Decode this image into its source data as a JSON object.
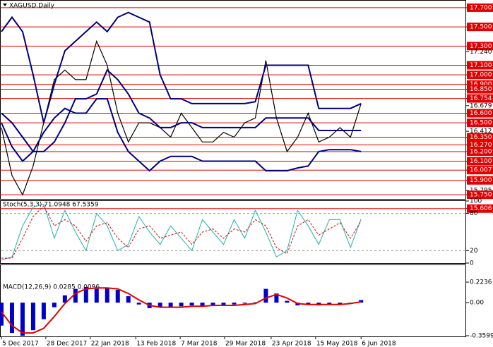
{
  "chart_data": [
    {
      "type": "line",
      "title": "XAGUSD,Daily",
      "xlim": [
        0,
        43.8
      ],
      "ylim": [
        15.707,
        17.773
      ],
      "yticks": [
        {
          "value": 17.7,
          "label": "17.700"
        },
        {
          "value": 17.5,
          "label": "17.500"
        },
        {
          "value": 17.3,
          "label": "17.300"
        },
        {
          "value": 17.24,
          "label": "17.240"
        },
        {
          "value": 17.1,
          "label": "17.100"
        },
        {
          "value": 17.0,
          "label": "17.000"
        },
        {
          "value": 16.9,
          "label": "16.900"
        },
        {
          "value": 16.85,
          "label": "16.850"
        },
        {
          "value": 16.754,
          "label": "16.754"
        },
        {
          "value": 16.679,
          "label": "16.679"
        },
        {
          "value": 16.6,
          "label": "16.600"
        },
        {
          "value": 16.5,
          "label": "16.500"
        },
        {
          "value": 16.412,
          "label": "16.412"
        },
        {
          "value": 16.35,
          "label": "16.350"
        },
        {
          "value": 16.27,
          "label": "16.270"
        },
        {
          "value": 16.2,
          "label": "16.200"
        },
        {
          "value": 16.1,
          "label": "16.100"
        },
        {
          "value": 16.007,
          "label": "16.007"
        },
        {
          "value": 15.9,
          "label": "15.900"
        },
        {
          "value": 15.795,
          "label": "15.795"
        },
        {
          "value": 15.75,
          "label": "15.750"
        },
        {
          "value": 15.606,
          "label": "15.606"
        }
      ],
      "levels": [
        17.7,
        17.5,
        17.3,
        17.1,
        17.0,
        16.9,
        16.85,
        16.754,
        16.6,
        16.5,
        16.35,
        16.27,
        16.2,
        16.1,
        16.007,
        15.9,
        15.75,
        15.606
      ],
      "level_color": "#e00000",
      "grid": false,
      "series": [
        {
          "color": "#000000",
          "width": 1.2,
          "values": [
            16.45,
            15.95,
            15.75,
            16.05,
            16.5,
            16.95,
            17.05,
            16.95,
            16.95,
            17.35,
            17.1,
            16.6,
            16.3,
            16.5,
            16.5,
            16.45,
            16.35,
            16.6,
            16.45,
            16.3,
            16.3,
            16.4,
            16.35,
            16.5,
            16.55,
            17.15,
            16.55,
            16.2,
            16.35,
            16.6,
            16.3,
            16.35,
            16.45,
            16.35,
            16.7
          ]
        },
        {
          "color": "#00007f",
          "width": 2,
          "values": [
            17.45,
            17.6,
            17.45,
            17.0,
            16.5,
            16.9,
            17.25,
            17.35,
            17.45,
            17.55,
            17.45,
            17.6,
            17.65,
            17.6,
            17.55,
            17.0,
            16.75,
            16.75,
            16.7,
            16.7,
            16.7,
            16.7,
            16.7,
            16.7,
            16.72,
            17.1,
            17.1,
            17.1,
            17.1,
            17.1,
            16.65,
            16.65,
            16.65,
            16.65,
            16.7
          ]
        },
        {
          "color": "#00007f",
          "width": 2,
          "values": [
            16.6,
            16.5,
            16.35,
            16.2,
            16.2,
            16.3,
            16.5,
            16.75,
            16.75,
            16.8,
            17.05,
            16.95,
            16.8,
            16.6,
            16.55,
            16.45,
            16.45,
            16.5,
            16.5,
            16.45,
            16.45,
            16.45,
            16.45,
            16.45,
            16.45,
            16.55,
            16.55,
            16.55,
            16.55,
            16.55,
            16.42,
            16.42,
            16.42,
            16.42,
            16.42
          ]
        },
        {
          "color": "#00007f",
          "width": 2,
          "values": [
            16.5,
            16.25,
            16.1,
            16.2,
            16.4,
            16.55,
            16.65,
            16.6,
            16.6,
            16.75,
            16.75,
            16.4,
            16.2,
            16.1,
            16.0,
            16.1,
            16.15,
            16.15,
            16.15,
            16.1,
            16.1,
            16.1,
            16.1,
            16.1,
            16.1,
            16.0,
            16.0,
            16.0,
            16.03,
            16.05,
            16.2,
            16.22,
            16.22,
            16.22,
            16.2
          ]
        }
      ]
    },
    {
      "type": "line",
      "title": "Stoch(5,3,3) 71.0948 67.5359",
      "xlim": [
        0,
        43.8
      ],
      "ylim": [
        0,
        100
      ],
      "yticks": [
        100,
        80,
        20,
        0
      ],
      "grid": true,
      "series": [
        {
          "color": "#20b2aa",
          "width": 1,
          "values": [
            5,
            10,
            60,
            90,
            95,
            40,
            85,
            50,
            20,
            80,
            60,
            20,
            30,
            75,
            50,
            30,
            60,
            40,
            20,
            70,
            50,
            30,
            70,
            40,
            85,
            50,
            10,
            20,
            85,
            60,
            30,
            70,
            70,
            25,
            71.0948
          ]
        },
        {
          "color": "#e00000",
          "width": 1,
          "dashed": true,
          "values": [
            8,
            8,
            40,
            75,
            92,
            60,
            70,
            60,
            35,
            60,
            65,
            40,
            25,
            55,
            60,
            40,
            45,
            50,
            30,
            50,
            55,
            40,
            55,
            50,
            70,
            60,
            25,
            15,
            60,
            70,
            45,
            55,
            65,
            40,
            67.5359
          ]
        }
      ]
    },
    {
      "type": "bar",
      "title": "MACD(12,26,9) 0.0285 0.0096",
      "xlim": [
        0,
        43.8
      ],
      "ylim": [
        -0.3599,
        0.2236
      ],
      "yticks": [
        0.2236,
        {
          "value": 0,
          "label": "0.00"
        },
        -0.3599
      ],
      "grid": false,
      "xticks": [
        {
          "value": 0,
          "label": "5 Dec 2017"
        },
        {
          "value": 4.2,
          "label": "28 Dec 2017"
        },
        {
          "value": 8.4,
          "label": "22 Jan 2018"
        },
        {
          "value": 12.7,
          "label": "13 Feb 2018"
        },
        {
          "value": 16.9,
          "label": "7 Mar 2018"
        },
        {
          "value": 21.1,
          "label": "29 Mar 2018"
        },
        {
          "value": 25.5,
          "label": "23 Apr 2018"
        },
        {
          "value": 29.7,
          "label": "15 May 2018"
        },
        {
          "value": 34,
          "label": "6 Jun 2018"
        }
      ],
      "series": [
        {
          "color": "#0000cd",
          "values": [
            -0.25,
            -0.33,
            -0.36,
            -0.3,
            -0.18,
            -0.05,
            0.08,
            0.15,
            0.17,
            0.15,
            0.16,
            0.14,
            0.07,
            -0.02,
            -0.06,
            -0.05,
            -0.05,
            -0.04,
            -0.03,
            -0.04,
            -0.03,
            -0.03,
            -0.02,
            -0.01,
            0.005,
            0.15,
            0.1,
            0.02,
            -0.03,
            -0.02,
            -0.03,
            -0.02,
            -0.02,
            -0.01,
            0.0285
          ]
        },
        {
          "type": "line",
          "color": "#e00000",
          "width": 2,
          "values": [
            -0.1,
            -0.25,
            -0.33,
            -0.33,
            -0.28,
            -0.15,
            -0.01,
            0.1,
            0.15,
            0.16,
            0.16,
            0.15,
            0.1,
            0.03,
            -0.03,
            -0.05,
            -0.05,
            -0.05,
            -0.04,
            -0.04,
            -0.03,
            -0.03,
            -0.03,
            -0.02,
            -0.01,
            0.05,
            0.09,
            0.05,
            -0.01,
            -0.02,
            -0.02,
            -0.02,
            -0.02,
            -0.01,
            0.0096
          ]
        }
      ]
    }
  ]
}
